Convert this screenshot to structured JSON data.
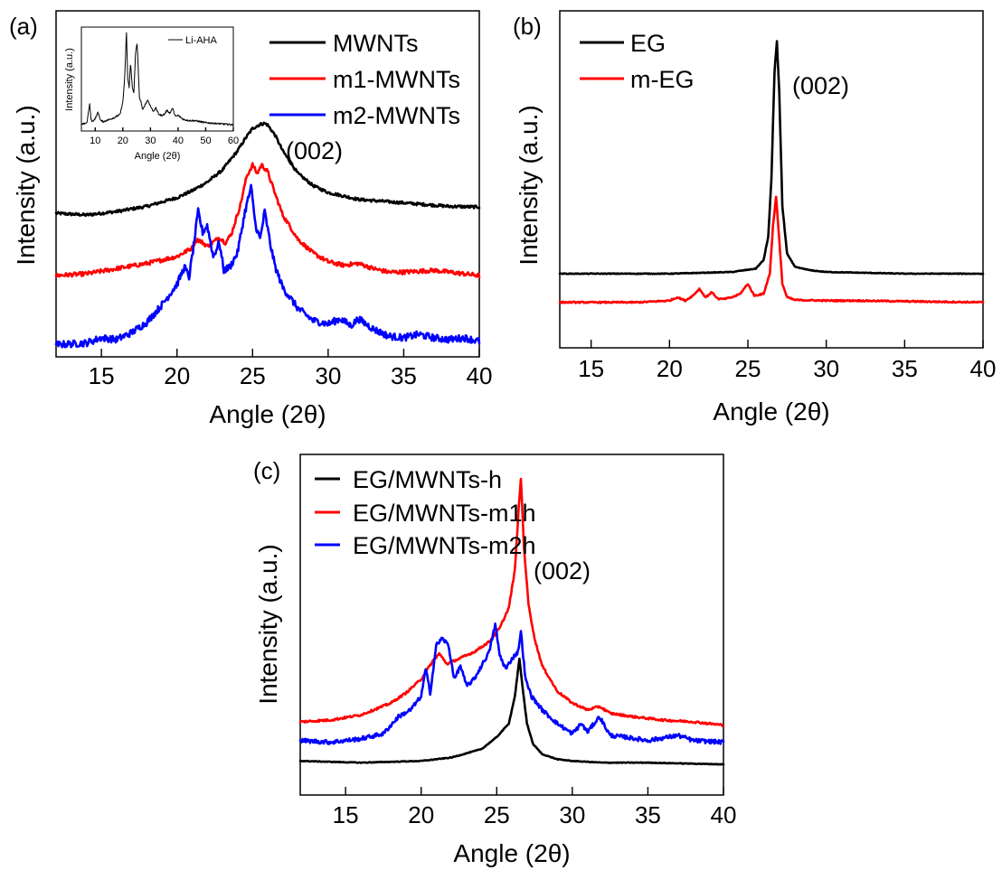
{
  "chart_data": [
    {
      "panel": "(a)",
      "type": "line",
      "xlabel": "Angle (2θ)",
      "ylabel": "Intensity (a.u.)",
      "xlim": [
        12,
        40
      ],
      "ylim": [
        0,
        10
      ],
      "xticks": [
        15,
        20,
        25,
        30,
        35,
        40
      ],
      "yticks_shown": false,
      "grid": false,
      "legend_position": "top-right",
      "annotations": [
        {
          "text": "(002)",
          "x": 27.6,
          "y": 6.75
        }
      ],
      "series": [
        {
          "name": "MWNTs",
          "color": "#000000",
          "noise": 0.04,
          "x": [
            12,
            14,
            16,
            18,
            20,
            21,
            22,
            23,
            24,
            24.5,
            25,
            25.5,
            25.8,
            26,
            26.5,
            27,
            28,
            29,
            30,
            32,
            35,
            38,
            40
          ],
          "y": [
            4.15,
            4.1,
            4.2,
            4.35,
            4.6,
            4.8,
            5.05,
            5.4,
            5.95,
            6.3,
            6.6,
            6.72,
            6.75,
            6.7,
            6.4,
            5.95,
            5.3,
            4.95,
            4.75,
            4.55,
            4.45,
            4.35,
            4.33
          ]
        },
        {
          "name": "m1-MWNTs",
          "color": "#ff0000",
          "noise": 0.06,
          "x": [
            12,
            14,
            16,
            18,
            19,
            20,
            21,
            21.3,
            21.7,
            22,
            22.5,
            22.8,
            23.2,
            23.6,
            24.2,
            24.6,
            25,
            25.3,
            25.6,
            26,
            26.5,
            27,
            28,
            29,
            30,
            31,
            32,
            33,
            34,
            35,
            37,
            40
          ],
          "y": [
            2.35,
            2.4,
            2.55,
            2.7,
            2.8,
            2.9,
            3.15,
            3.4,
            3.3,
            3.2,
            3.35,
            3.45,
            3.3,
            3.55,
            4.4,
            5.2,
            5.55,
            5.3,
            5.55,
            5.35,
            4.7,
            4.1,
            3.4,
            3.0,
            2.75,
            2.65,
            2.7,
            2.55,
            2.45,
            2.45,
            2.5,
            2.35
          ]
        },
        {
          "name": "m2-MWNTs",
          "color": "#0000ff",
          "noise": 0.1,
          "x": [
            12,
            14,
            15,
            16,
            17,
            18,
            19,
            20,
            20.5,
            20.8,
            21.1,
            21.4,
            21.7,
            22,
            22.4,
            22.8,
            23.1,
            23.5,
            24,
            24.5,
            24.9,
            25.2,
            25.5,
            25.8,
            26.2,
            26.5,
            27,
            28,
            29,
            30,
            30.8,
            31.5,
            32,
            33,
            34,
            35,
            36,
            37,
            38,
            39,
            40
          ],
          "y": [
            0.35,
            0.4,
            0.55,
            0.5,
            0.7,
            1.0,
            1.5,
            2.1,
            2.6,
            2.3,
            3.2,
            4.2,
            3.6,
            3.8,
            2.9,
            3.3,
            2.5,
            2.6,
            3.0,
            4.2,
            4.9,
            3.8,
            3.4,
            4.2,
            3.2,
            2.6,
            2.0,
            1.4,
            1.05,
            0.95,
            1.1,
            0.9,
            1.1,
            0.8,
            0.6,
            0.55,
            0.65,
            0.55,
            0.5,
            0.55,
            0.45
          ]
        }
      ],
      "inset": {
        "type": "line",
        "xlabel": "Angle (2θ)",
        "ylabel": "Intensity (a.u.)",
        "xlim": [
          5,
          60
        ],
        "ylim": [
          0,
          10
        ],
        "xticks": [
          10,
          20,
          30,
          40,
          50,
          60
        ],
        "series": [
          {
            "name": "Li-AHA",
            "color": "#000000",
            "noise": 0.08,
            "x": [
              5,
              7,
              8,
              8.5,
              9,
              10,
              11,
              12,
              13,
              15,
              17,
              19,
              20,
              20.7,
              21.3,
              21.8,
              22.3,
              22.8,
              23.5,
              24,
              24.6,
              25.2,
              26,
              26.6,
              27.2,
              28,
              29,
              30,
              31,
              32,
              33,
              34,
              35,
              36,
              37,
              38,
              39,
              40,
              42,
              44,
              46,
              48,
              50,
              55,
              60
            ],
            "y": [
              0.6,
              0.8,
              2.6,
              1.1,
              0.9,
              1.2,
              1.8,
              1.0,
              0.9,
              1.1,
              1.3,
              1.6,
              2.8,
              5.2,
              9.6,
              5.0,
              4.2,
              6.5,
              4.1,
              3.6,
              7.5,
              8.5,
              3.2,
              2.8,
              2.0,
              2.5,
              3.0,
              2.4,
              1.9,
              2.2,
              1.6,
              1.5,
              1.6,
              2.0,
              1.7,
              2.2,
              1.4,
              1.5,
              1.1,
              1.0,
              1.0,
              0.9,
              0.8,
              0.7,
              0.6
            ]
          }
        ]
      }
    },
    {
      "panel": "(b)",
      "type": "line",
      "xlabel": "Angle (2θ)",
      "ylabel": "Intensity (a.u.)",
      "xlim": [
        13,
        40
      ],
      "ylim": [
        0,
        10
      ],
      "xticks": [
        15,
        20,
        25,
        30,
        35,
        40
      ],
      "yticks_shown": false,
      "grid": false,
      "legend_position": "top-left",
      "annotations": [
        {
          "text": "(002)",
          "x": 28.9,
          "y": 9.2
        }
      ],
      "series": [
        {
          "name": "EG",
          "color": "#000000",
          "noise": 0.01,
          "x": [
            13,
            20,
            24,
            25.5,
            26,
            26.3,
            26.5,
            26.7,
            26.85,
            27,
            27.2,
            27.5,
            28,
            29,
            30,
            35,
            40
          ],
          "y": [
            2.2,
            2.2,
            2.25,
            2.35,
            2.6,
            3.3,
            5.0,
            8.2,
            9.1,
            7.6,
            4.2,
            2.8,
            2.4,
            2.3,
            2.25,
            2.2,
            2.2
          ]
        },
        {
          "name": "m-EG",
          "color": "#ff0000",
          "noise": 0.02,
          "x": [
            13,
            18,
            20,
            20.5,
            21,
            21.5,
            21.9,
            22.3,
            22.7,
            23.1,
            23.5,
            24,
            24.5,
            25,
            25.4,
            26,
            26.4,
            26.6,
            26.8,
            27.0,
            27.2,
            27.5,
            28,
            30,
            32,
            35,
            40
          ],
          "y": [
            1.35,
            1.35,
            1.4,
            1.5,
            1.4,
            1.55,
            1.75,
            1.5,
            1.65,
            1.45,
            1.45,
            1.5,
            1.6,
            1.9,
            1.55,
            1.6,
            2.2,
            3.6,
            4.5,
            3.2,
            1.9,
            1.5,
            1.42,
            1.4,
            1.4,
            1.38,
            1.35
          ]
        }
      ]
    },
    {
      "panel": "(c)",
      "type": "line",
      "xlabel": "Angle (2θ)",
      "ylabel": "Intensity (a.u.)",
      "xlim": [
        12,
        40
      ],
      "ylim": [
        0,
        10
      ],
      "xticks": [
        15,
        20,
        25,
        30,
        35,
        40
      ],
      "yticks_shown": false,
      "grid": false,
      "legend_position": "top-left",
      "annotations": [
        {
          "text": "(002)",
          "x": 27.2,
          "y": 7.25
        }
      ],
      "series": [
        {
          "name": "EG/MWNTs-h",
          "color": "#000000",
          "noise": 0.01,
          "x": [
            12,
            16,
            20,
            22,
            24,
            25,
            25.8,
            26.2,
            26.5,
            26.7,
            27,
            27.4,
            28,
            29,
            30,
            32,
            35,
            40
          ],
          "y": [
            1.0,
            0.95,
            1.0,
            1.1,
            1.35,
            1.7,
            2.1,
            2.9,
            4.0,
            3.2,
            2.1,
            1.5,
            1.2,
            1.05,
            1.0,
            0.95,
            0.95,
            0.9
          ]
        },
        {
          "name": "EG/MWNTs-m1h",
          "color": "#ff0000",
          "noise": 0.03,
          "x": [
            12,
            14,
            16,
            18,
            19,
            20,
            20.8,
            21.2,
            21.7,
            22.5,
            23.5,
            24.5,
            25.2,
            25.8,
            26.2,
            26.45,
            26.6,
            26.8,
            27.1,
            27.5,
            28,
            29,
            30,
            31,
            31.8,
            32.5,
            34,
            36,
            38,
            40
          ],
          "y": [
            2.15,
            2.2,
            2.35,
            2.7,
            3.0,
            3.4,
            3.95,
            4.15,
            3.85,
            4.0,
            4.2,
            4.5,
            4.9,
            5.5,
            6.6,
            8.4,
            9.3,
            7.3,
            5.6,
            4.6,
            3.8,
            3.05,
            2.7,
            2.5,
            2.6,
            2.4,
            2.3,
            2.2,
            2.15,
            2.05
          ]
        },
        {
          "name": "EG/MWNTs-m2h",
          "color": "#0000ff",
          "noise": 0.06,
          "x": [
            12,
            14,
            16,
            17.5,
            18.5,
            19.3,
            20,
            20.3,
            20.6,
            21,
            21.4,
            21.8,
            22.2,
            22.6,
            23,
            23.5,
            24,
            24.5,
            24.9,
            25.2,
            25.6,
            26,
            26.4,
            26.6,
            26.9,
            27.3,
            28,
            29,
            30,
            30.6,
            31,
            31.8,
            32.5,
            33.5,
            35,
            37,
            38,
            40
          ],
          "y": [
            1.6,
            1.55,
            1.65,
            1.8,
            2.3,
            2.5,
            2.9,
            3.7,
            3.0,
            4.4,
            4.6,
            4.4,
            3.4,
            3.8,
            3.2,
            3.4,
            3.8,
            4.2,
            5.0,
            4.1,
            3.7,
            4.0,
            4.2,
            4.8,
            3.4,
            2.9,
            2.5,
            2.1,
            1.8,
            2.1,
            1.85,
            2.3,
            1.75,
            1.7,
            1.6,
            1.75,
            1.6,
            1.55
          ]
        }
      ]
    }
  ]
}
